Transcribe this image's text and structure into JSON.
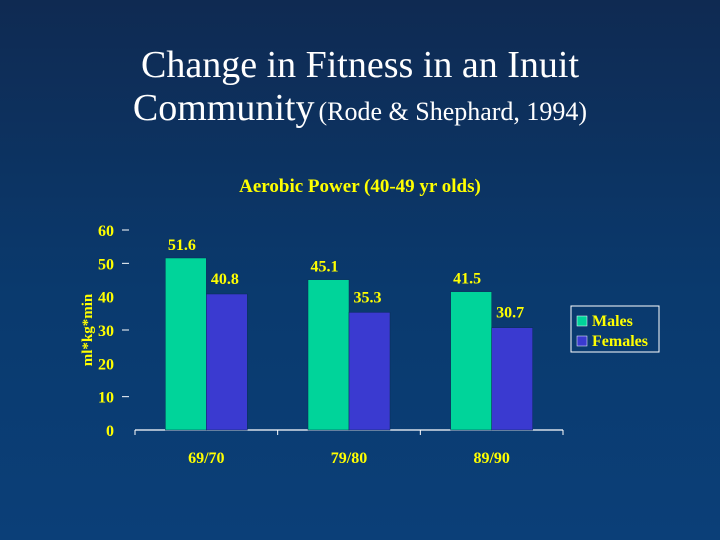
{
  "slide": {
    "title_line1": "Change in Fitness in an Inuit",
    "title_line2_main": "Community",
    "title_line2_cite": "(Rode & Shephard, 1994)"
  },
  "colors": {
    "males": "#00d49a",
    "females": "#3a3ad0",
    "title": "#ffffff",
    "chart_title": "#ffff00",
    "labels": "#ffff00",
    "axis": "#ffffff"
  },
  "chart_data": {
    "type": "bar",
    "title": "Aerobic Power (40-49 yr olds)",
    "xlabel": "",
    "ylabel": "ml*kg*min",
    "ylim": [
      0,
      60
    ],
    "yticks": [
      0,
      10,
      20,
      30,
      40,
      50,
      60
    ],
    "categories": [
      "69/70",
      "79/80",
      "89/90"
    ],
    "series": [
      {
        "name": "Males",
        "values": [
          51.6,
          45.1,
          41.5
        ]
      },
      {
        "name": "Females",
        "values": [
          40.8,
          35.3,
          30.7
        ]
      }
    ],
    "legend": "right"
  }
}
